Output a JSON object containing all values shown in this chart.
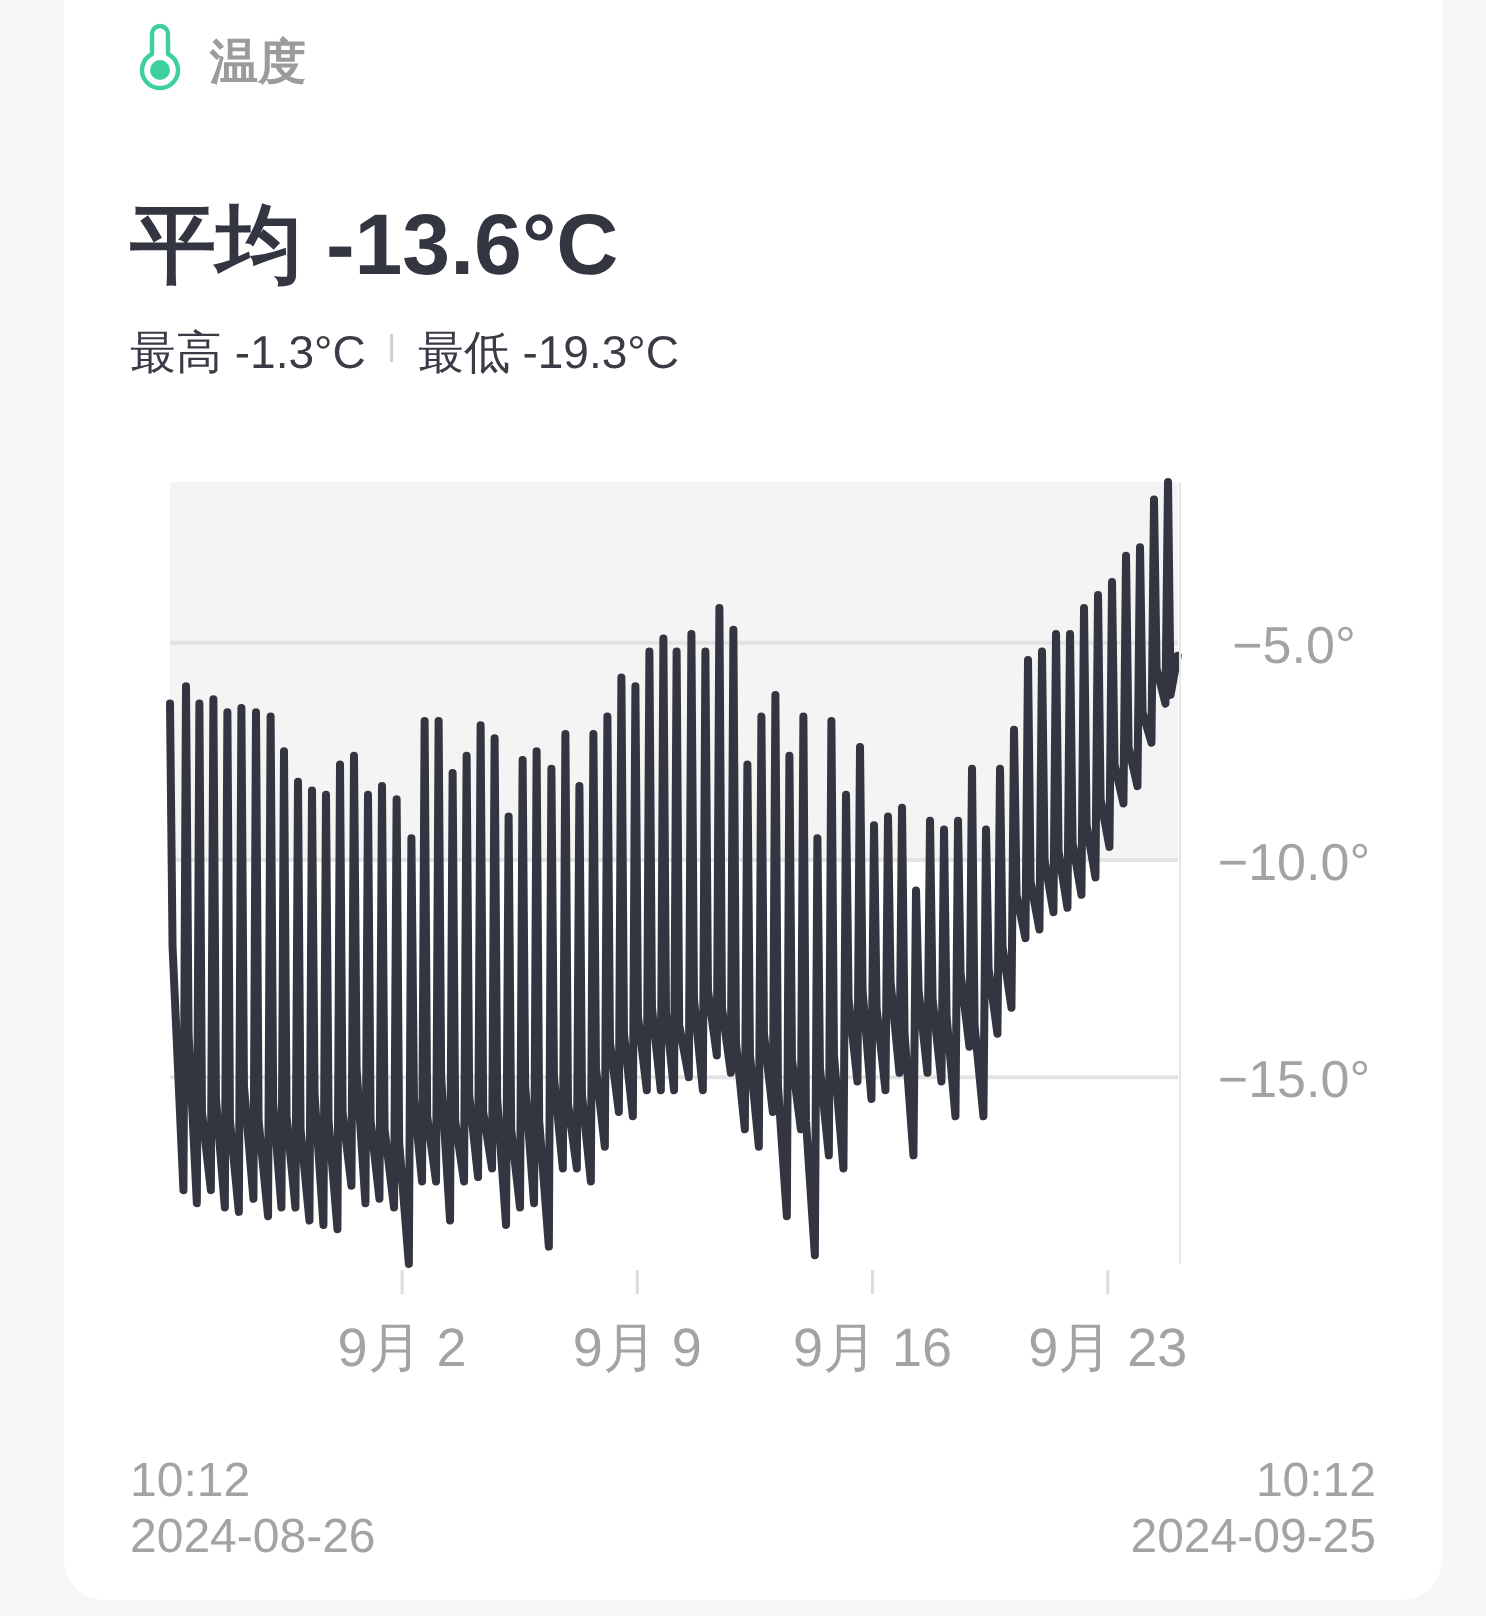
{
  "chart_data": {
    "type": "line",
    "title": "温度",
    "subtitle": "平均 -13.6°C",
    "annotations": [
      "最高 -1.3°C",
      "最低 -19.3°C",
      "10:12\n2024-08-26",
      "10:12\n2024-09-25"
    ],
    "color": "#333640",
    "line_style": "solid",
    "grid": "y",
    "xlim": [
      "2024-08-26T02:12",
      "2024-09-25T02:12"
    ],
    "xticks": [
      {
        "value": "2024-09-02",
        "label": "9月 2"
      },
      {
        "value": "2024-09-09",
        "label": "9月 9"
      },
      {
        "value": "2024-09-16",
        "label": "9月 16"
      },
      {
        "value": "2024-09-23",
        "label": "9月 23"
      }
    ],
    "ylim": [
      -19.3,
      -1.3
    ],
    "yticks": [
      {
        "value": -5,
        "label": "−5.0°"
      },
      {
        "value": -10,
        "label": "−10.0°"
      },
      {
        "value": -15,
        "label": "−15.0°"
      }
    ],
    "bands": [
      {
        "axis": "y",
        "from": -10,
        "to": -1.3,
        "color": "#f4f4f4"
      }
    ],
    "x": [
      "2024-08-26T02:12",
      "2024-08-26T04:02",
      "2024-08-26T11:48",
      "2024-08-26T13:38",
      "2024-08-26T15:28",
      "2024-08-26T21:22",
      "2024-08-26T23:12",
      "2024-08-27T01:02",
      "2024-08-27T07:22",
      "2024-08-27T09:12",
      "2024-08-27T11:02",
      "2024-08-27T17:22",
      "2024-08-27T19:12",
      "2024-08-27T21:02",
      "2024-08-28T03:22",
      "2024-08-28T05:12",
      "2024-08-28T07:02",
      "2024-08-28T13:48",
      "2024-08-28T15:38",
      "2024-08-28T17:28",
      "2024-08-29T00:14",
      "2024-08-29T02:04",
      "2024-08-29T03:54",
      "2024-08-29T09:48",
      "2024-08-29T11:38",
      "2024-08-29T13:28",
      "2024-08-29T19:48",
      "2024-08-29T21:38",
      "2024-08-29T23:28",
      "2024-08-30T05:48",
      "2024-08-30T07:38",
      "2024-08-30T09:28",
      "2024-08-30T15:48",
      "2024-08-30T17:38",
      "2024-08-30T19:28",
      "2024-08-31T01:48",
      "2024-08-31T03:38",
      "2024-08-31T05:28",
      "2024-08-31T11:48",
      "2024-08-31T13:38",
      "2024-08-31T15:28",
      "2024-08-31T21:48",
      "2024-08-31T23:38",
      "2024-09-01T01:28",
      "2024-09-01T07:48",
      "2024-09-01T09:38",
      "2024-09-01T11:28",
      "2024-09-01T18:14",
      "2024-09-01T20:04",
      "2024-09-01T21:54",
      "2024-09-02T04:48",
      "2024-09-02T06:38",
      "2024-09-02T08:28",
      "2024-09-02T14:14",
      "2024-09-02T16:04",
      "2024-09-02T17:54",
      "2024-09-03T00:14",
      "2024-09-03T02:04",
      "2024-09-03T03:54",
      "2024-09-03T10:14",
      "2024-09-03T12:04",
      "2024-09-03T13:54",
      "2024-09-03T20:14",
      "2024-09-03T22:04",
      "2024-09-03T23:54",
      "2024-09-04T06:14",
      "2024-09-04T08:04",
      "2024-09-04T09:54",
      "2024-09-04T16:14",
      "2024-09-04T18:04",
      "2024-09-04T19:54",
      "2024-09-05T02:14",
      "2024-09-05T04:04",
      "2024-09-05T05:54",
      "2024-09-05T12:14",
      "2024-09-05T14:04",
      "2024-09-05T15:54",
      "2024-09-05T22:14",
      "2024-09-06T00:04",
      "2024-09-06T01:54",
      "2024-09-06T08:48",
      "2024-09-06T10:38",
      "2024-09-06T12:28",
      "2024-09-06T18:48",
      "2024-09-06T20:38",
      "2024-09-06T22:28",
      "2024-09-07T04:48",
      "2024-09-07T06:38",
      "2024-09-07T08:28",
      "2024-09-07T14:48",
      "2024-09-07T16:38",
      "2024-09-07T18:28",
      "2024-09-08T00:48",
      "2024-09-08T02:38",
      "2024-09-08T04:28",
      "2024-09-08T10:48",
      "2024-09-08T12:38",
      "2024-09-08T14:28",
      "2024-09-08T20:48",
      "2024-09-08T22:38",
      "2024-09-09T00:28",
      "2024-09-09T06:48",
      "2024-09-09T08:38",
      "2024-09-09T10:28",
      "2024-09-09T16:48",
      "2024-09-09T18:38",
      "2024-09-09T20:28",
      "2024-09-10T02:14",
      "2024-09-10T04:04",
      "2024-09-10T05:54",
      "2024-09-10T12:48",
      "2024-09-10T14:38",
      "2024-09-10T16:28",
      "2024-09-10T22:48",
      "2024-09-11T00:38",
      "2024-09-11T02:28",
      "2024-09-11T08:48",
      "2024-09-11T10:38",
      "2024-09-11T12:28",
      "2024-09-11T18:48",
      "2024-09-11T20:38",
      "2024-09-11T22:28",
      "2024-09-12T04:48",
      "2024-09-12T06:38",
      "2024-09-12T08:28",
      "2024-09-12T14:48",
      "2024-09-12T16:38",
      "2024-09-12T18:28",
      "2024-09-13T00:48",
      "2024-09-13T02:38",
      "2024-09-13T04:28",
      "2024-09-13T10:48",
      "2024-09-13T12:38",
      "2024-09-13T14:28",
      "2024-09-13T20:48",
      "2024-09-13T22:38",
      "2024-09-14T00:28",
      "2024-09-14T06:48",
      "2024-09-14T08:38",
      "2024-09-14T10:28",
      "2024-09-14T16:48",
      "2024-09-14T18:38",
      "2024-09-14T20:28",
      "2024-09-15T03:14",
      "2024-09-15T05:04",
      "2024-09-15T06:54",
      "2024-09-15T13:14",
      "2024-09-15T15:04",
      "2024-09-15T16:54",
      "2024-09-15T23:14",
      "2024-09-16T01:04",
      "2024-09-16T02:54",
      "2024-09-16T09:14",
      "2024-09-16T11:04",
      "2024-09-16T12:54",
      "2024-09-16T19:14",
      "2024-09-16T21:04",
      "2024-09-16T22:54",
      "2024-09-17T05:14",
      "2024-09-17T07:04",
      "2024-09-17T08:54",
      "2024-09-17T15:14",
      "2024-09-17T17:04",
      "2024-09-17T18:54",
      "2024-09-18T01:14",
      "2024-09-18T03:04",
      "2024-09-18T04:54",
      "2024-09-18T11:14",
      "2024-09-18T13:04",
      "2024-09-18T14:54",
      "2024-09-18T21:14",
      "2024-09-18T23:04",
      "2024-09-19T00:54",
      "2024-09-19T07:14",
      "2024-09-19T09:04",
      "2024-09-19T10:54",
      "2024-09-19T17:14",
      "2024-09-19T19:04",
      "2024-09-19T20:54",
      "2024-09-20T03:14",
      "2024-09-20T05:04",
      "2024-09-20T06:54",
      "2024-09-20T13:14",
      "2024-09-20T15:04",
      "2024-09-20T16:54",
      "2024-09-20T23:14",
      "2024-09-21T01:04",
      "2024-09-21T02:54",
      "2024-09-21T09:14",
      "2024-09-21T11:04",
      "2024-09-21T12:54",
      "2024-09-21T19:14",
      "2024-09-21T21:04",
      "2024-09-21T22:54",
      "2024-09-22T05:14",
      "2024-09-22T07:04",
      "2024-09-22T08:54",
      "2024-09-22T15:14",
      "2024-09-22T17:04",
      "2024-09-22T18:54",
      "2024-09-23T01:14",
      "2024-09-23T03:04",
      "2024-09-23T04:54",
      "2024-09-23T11:14",
      "2024-09-23T13:04",
      "2024-09-23T14:54",
      "2024-09-23T21:14",
      "2024-09-23T23:04",
      "2024-09-24T00:54",
      "2024-09-24T07:14",
      "2024-09-24T09:04",
      "2024-09-24T10:54",
      "2024-09-24T17:14",
      "2024-09-24T19:04",
      "2024-09-24T20:54",
      "2024-09-25T02:00"
    ],
    "values": [
      -6.4,
      -12.0,
      -17.6,
      -6.0,
      -14.0,
      -17.9,
      -6.4,
      -15.8,
      -17.6,
      -6.3,
      -15.5,
      -18.0,
      -6.6,
      -16.0,
      -18.1,
      -6.5,
      -15.2,
      -17.8,
      -6.6,
      -16.0,
      -18.2,
      -6.7,
      -15.6,
      -18.0,
      -7.5,
      -15.9,
      -18.0,
      -8.2,
      -16.2,
      -18.3,
      -8.4,
      -15.4,
      -18.4,
      -8.5,
      -16.0,
      -18.5,
      -7.8,
      -15.8,
      -17.5,
      -7.6,
      -14.8,
      -17.9,
      -8.5,
      -16.0,
      -17.8,
      -8.3,
      -16.2,
      -18.0,
      -8.6,
      -16.5,
      -19.3,
      -9.5,
      -15.5,
      -17.4,
      -6.8,
      -15.9,
      -17.4,
      -6.8,
      -15.0,
      -18.3,
      -8.0,
      -16.0,
      -17.4,
      -7.6,
      -15.4,
      -17.3,
      -6.9,
      -15.8,
      -17.1,
      -7.2,
      -15.5,
      -18.4,
      -9.0,
      -16.2,
      -18.0,
      -7.7,
      -15.2,
      -17.9,
      -7.5,
      -16.0,
      -18.9,
      -7.9,
      -15.0,
      -17.1,
      -7.1,
      -15.6,
      -17.1,
      -8.3,
      -15.4,
      -17.4,
      -7.1,
      -14.8,
      -16.6,
      -6.7,
      -14.2,
      -15.8,
      -5.8,
      -14.0,
      -15.9,
      -6.0,
      -13.6,
      -15.3,
      -5.2,
      -13.4,
      -15.3,
      -4.9,
      -13.5,
      -15.3,
      -5.2,
      -13.8,
      -15.0,
      -4.8,
      -13.2,
      -15.3,
      -5.2,
      -13.0,
      -14.5,
      -4.2,
      -13.4,
      -14.9,
      -4.7,
      -14.2,
      -16.2,
      -7.8,
      -14.5,
      -16.6,
      -6.7,
      -14.0,
      -15.8,
      -6.2,
      -15.2,
      -18.2,
      -7.6,
      -14.6,
      -16.2,
      -6.7,
      -16.0,
      -19.1,
      -9.5,
      -14.8,
      -16.8,
      -6.8,
      -14.5,
      -17.1,
      -8.5,
      -13.2,
      -15.1,
      -7.4,
      -13.0,
      -15.5,
      -9.2,
      -13.4,
      -15.3,
      -9.0,
      -12.8,
      -14.9,
      -8.8,
      -14.0,
      -16.8,
      -10.7,
      -13.0,
      -14.9,
      -9.1,
      -13.2,
      -15.1,
      -9.3,
      -13.6,
      -15.9,
      -9.1,
      -12.6,
      -14.3,
      -7.9,
      -13.8,
      -15.9,
      -9.3,
      -12.5,
      -14.0,
      -7.9,
      -12.0,
      -13.4,
      -7.0,
      -10.8,
      -11.8,
      -5.4,
      -10.5,
      -11.6,
      -5.2,
      -10.0,
      -11.2,
      -4.8,
      -9.8,
      -11.1,
      -4.8,
      -9.6,
      -10.8,
      -4.2,
      -9.2,
      -10.4,
      -3.9,
      -8.6,
      -9.7,
      -3.6,
      -7.8,
      -8.7,
      -3.0,
      -7.4,
      -8.3,
      -2.8,
      -6.6,
      -7.3,
      -1.7,
      -5.6,
      -6.4,
      -1.3,
      -6.2,
      -5.3
    ]
  }
}
